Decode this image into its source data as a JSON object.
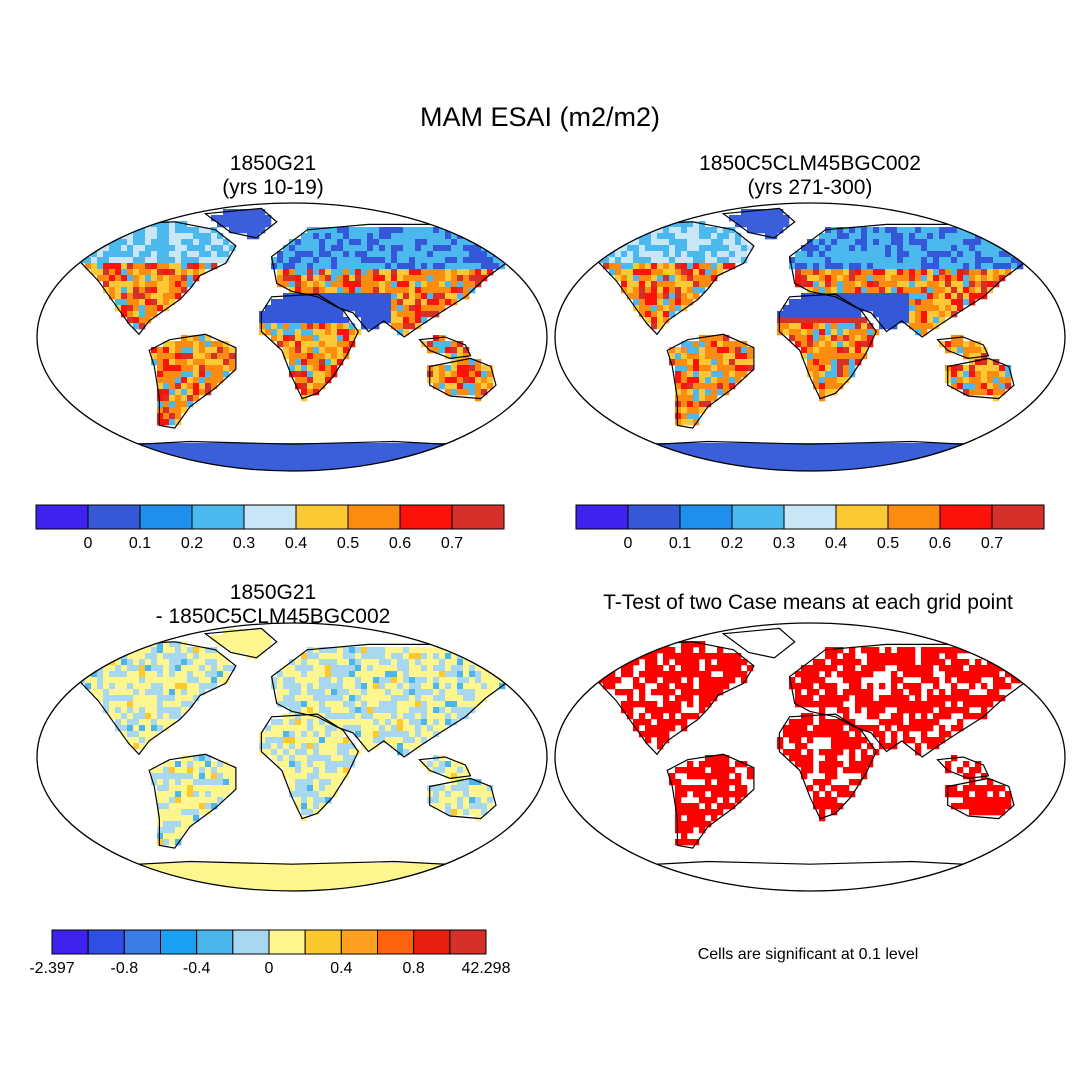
{
  "figure": {
    "title": "MAM ESAI (m2/m2)",
    "variable": "ESAI",
    "season": "MAM",
    "units": "m2/m2"
  },
  "panels": [
    {
      "id": "case1",
      "title_line1": "1850G21",
      "title_line2": "(yrs 10-19)",
      "style": "abs"
    },
    {
      "id": "case2",
      "title_line1": "1850C5CLM45BGC002",
      "title_line2": "(yrs 271-300)",
      "style": "abs2"
    },
    {
      "id": "diff",
      "title_line1": "1850G21",
      "title_line2": "- 1850C5CLM45BGC002",
      "style": "diff"
    },
    {
      "id": "ttest",
      "title": "T-Test of two Case means at each grid point",
      "style": "sig"
    }
  ],
  "colorbars": {
    "abs": {
      "colors": [
        "#3f22ee",
        "#3558d8",
        "#1f8fee",
        "#4bb8ee",
        "#c8e6f5",
        "#fcc935",
        "#fc8c10",
        "#fb1208",
        "#d6302a"
      ],
      "labels": [
        "0",
        "0.1",
        "0.2",
        "0.3",
        "0.4",
        "0.5",
        "0.6",
        "0.7"
      ]
    },
    "diff": {
      "colors": [
        "#3f22ee",
        "#2f4fe4",
        "#3b7ce4",
        "#1aa0f2",
        "#4ab6ec",
        "#a8d8f0",
        "#fdf58e",
        "#fcc830",
        "#fda020",
        "#fd6210",
        "#e81f10",
        "#d6302a"
      ],
      "labels": [
        "-2.397",
        "-0.8",
        "-0.4",
        "0",
        "0.4",
        "0.8",
        "42.298"
      ]
    }
  },
  "significance_note": "Cells are significant at 0.1 level",
  "palette": {
    "ice": "#3b5fd8",
    "desert": "#3558d8",
    "high": "#fc8c10",
    "mid": "#fcc935",
    "low": "#4bb8ee",
    "diff_base": "#fdf58e",
    "diff_neg": "#a8d8f0",
    "sig": "#ff0000"
  }
}
